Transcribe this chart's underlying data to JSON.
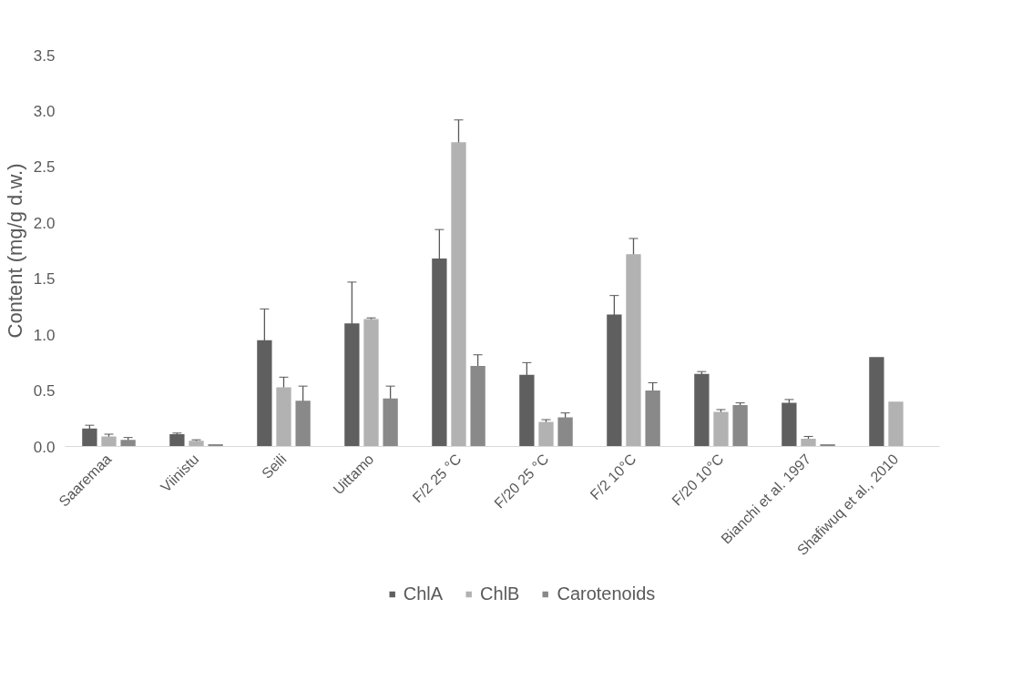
{
  "chart_data": {
    "type": "bar",
    "ylabel": "Content (mg/g d.w.)",
    "categories": [
      "Saaremaa",
      "Viinistu",
      "Seili",
      "Uittamo",
      "F/2 25 °C",
      "F/20 25 °C",
      "F/2 10°C",
      "F/20 10°C",
      "Bianchi et al. 1997",
      "Shafiwuq et al., 2010"
    ],
    "series": [
      {
        "name": "ChlA",
        "color": "#5f5f5f",
        "values": [
          0.16,
          0.11,
          0.95,
          1.1,
          1.68,
          0.64,
          1.18,
          0.65,
          0.39,
          0.8
        ],
        "errors": [
          0.03,
          0.01,
          0.28,
          0.37,
          0.26,
          0.11,
          0.17,
          0.02,
          0.03,
          null
        ]
      },
      {
        "name": "ChlB",
        "color": "#b2b2b2",
        "values": [
          0.09,
          0.05,
          0.53,
          1.14,
          2.72,
          0.22,
          1.72,
          0.31,
          0.07,
          0.4
        ],
        "errors": [
          0.02,
          0.01,
          0.09,
          0.01,
          0.2,
          0.02,
          0.14,
          0.02,
          0.02,
          null
        ]
      },
      {
        "name": "Carotenoids",
        "color": "#898989",
        "values": [
          0.06,
          0.02,
          0.41,
          0.43,
          0.72,
          0.26,
          0.5,
          0.37,
          0.02,
          null
        ],
        "errors": [
          0.02,
          null,
          0.13,
          0.11,
          0.1,
          0.04,
          0.07,
          0.02,
          null,
          null
        ]
      }
    ],
    "ylim": [
      0,
      3.5
    ],
    "yticks": [
      {
        "value": 0,
        "label": "0.0"
      },
      {
        "value": 0.5,
        "label": "0.5"
      },
      {
        "value": 1,
        "label": "1.0"
      },
      {
        "value": 1.5,
        "label": "1.5"
      },
      {
        "value": 2,
        "label": "2.0"
      },
      {
        "value": 2.5,
        "label": "2.5"
      },
      {
        "value": 3,
        "label": "3.0"
      },
      {
        "value": 3.5,
        "label": "3.5"
      }
    ],
    "grid": false,
    "legend": "bottom"
  }
}
